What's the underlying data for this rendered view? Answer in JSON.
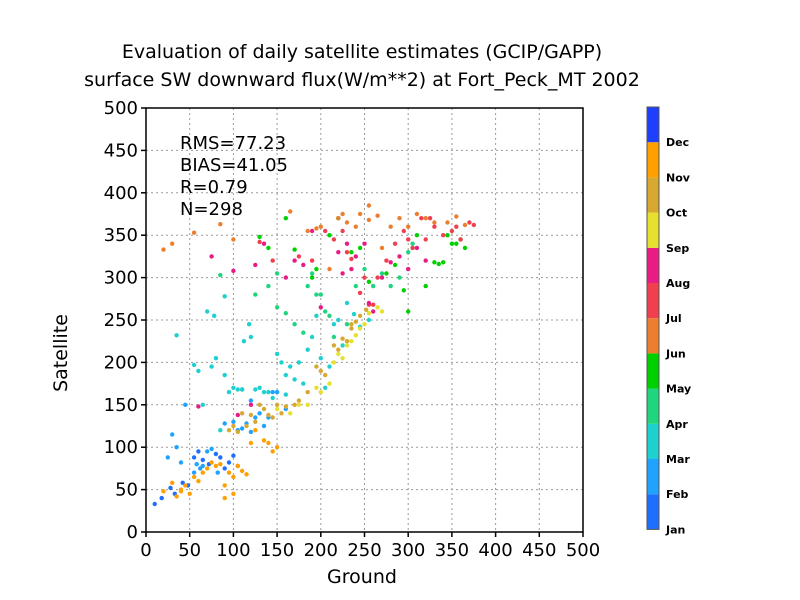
{
  "chart_data": {
    "type": "scatter",
    "title": "Evaluation of daily satellite estimates (GCIP/GAPP)",
    "subtitle": "surface SW downward flux(W/m**2) at Fort_Peck_MT 2002",
    "xlabel": "Ground",
    "ylabel": "Satellite",
    "xlim": [
      0,
      500
    ],
    "ylim": [
      0,
      500
    ],
    "xticks": [
      "0",
      "50",
      "100",
      "150",
      "200",
      "250",
      "300",
      "350",
      "400",
      "450",
      "500"
    ],
    "yticks": [
      "0",
      "50",
      "100",
      "150",
      "200",
      "250",
      "300",
      "350",
      "400",
      "450",
      "500"
    ],
    "grid": true,
    "stats": [
      "RMS=77.23",
      "BIAS=41.05",
      "R=0.79",
      "N=298"
    ],
    "colorbar": {
      "labels": [
        "Jan",
        "Feb",
        "Mar",
        "Apr",
        "May",
        "Jun",
        "Jul",
        "Aug",
        "Sep",
        "Oct",
        "Nov",
        "Dec"
      ],
      "colors": [
        "#1f6fff",
        "#1fa3ff",
        "#1fd0d0",
        "#1fd67f",
        "#00d000",
        "#ec7f2f",
        "#f04050",
        "#e81c84",
        "#e6e030",
        "#d8a830",
        "#ff9f00",
        "#1f3fff"
      ]
    },
    "series": [
      {
        "month": "Jan",
        "points": [
          [
            10,
            33
          ],
          [
            18,
            40
          ],
          [
            28,
            52
          ],
          [
            33,
            45
          ],
          [
            42,
            58
          ],
          [
            55,
            88
          ],
          [
            60,
            95
          ],
          [
            65,
            85
          ],
          [
            72,
            80
          ],
          [
            80,
            92
          ],
          [
            85,
            88
          ],
          [
            90,
            75
          ],
          [
            95,
            82
          ],
          [
            100,
            90
          ],
          [
            105,
            78
          ],
          [
            48,
            55
          ]
        ]
      },
      {
        "month": "Feb",
        "points": [
          [
            25,
            88
          ],
          [
            30,
            115
          ],
          [
            35,
            100
          ],
          [
            40,
            82
          ],
          [
            45,
            150
          ],
          [
            55,
            70
          ],
          [
            58,
            80
          ],
          [
            62,
            75
          ],
          [
            70,
            95
          ],
          [
            75,
            98
          ],
          [
            82,
            70
          ],
          [
            90,
            128
          ],
          [
            100,
            130
          ],
          [
            105,
            120
          ],
          [
            110,
            122
          ],
          [
            115,
            128
          ],
          [
            120,
            118
          ],
          [
            125,
            135
          ],
          [
            130,
            140
          ],
          [
            140,
            135
          ],
          [
            145,
            165
          ],
          [
            110,
            168
          ],
          [
            120,
            155
          ],
          [
            135,
            125
          ],
          [
            150,
            165
          ],
          [
            160,
            145
          ],
          [
            65,
            78
          ]
        ]
      },
      {
        "month": "Mar",
        "points": [
          [
            35,
            232
          ],
          [
            55,
            197
          ],
          [
            60,
            190
          ],
          [
            65,
            150
          ],
          [
            70,
            260
          ],
          [
            75,
            195
          ],
          [
            80,
            205
          ],
          [
            85,
            120
          ],
          [
            90,
            185
          ],
          [
            95,
            165
          ],
          [
            100,
            170
          ],
          [
            105,
            168
          ],
          [
            110,
            168
          ],
          [
            112,
            225
          ],
          [
            118,
            245
          ],
          [
            120,
            230
          ],
          [
            125,
            168
          ],
          [
            130,
            170
          ],
          [
            135,
            165
          ],
          [
            140,
            165
          ],
          [
            150,
            210
          ],
          [
            155,
            200
          ],
          [
            160,
            185
          ],
          [
            165,
            195
          ],
          [
            170,
            180
          ],
          [
            175,
            200
          ],
          [
            180,
            175
          ],
          [
            185,
            215
          ],
          [
            190,
            230
          ],
          [
            195,
            255
          ],
          [
            200,
            205
          ],
          [
            205,
            170
          ],
          [
            210,
            195
          ],
          [
            215,
            245
          ],
          [
            220,
            250
          ],
          [
            225,
            220
          ],
          [
            230,
            270
          ],
          [
            238,
            257
          ],
          [
            245,
            242
          ],
          [
            255,
            250
          ],
          [
            90,
            278
          ],
          [
            78,
            255
          ],
          [
            145,
            158
          ],
          [
            160,
            162
          ]
        ]
      },
      {
        "month": "Apr",
        "points": [
          [
            85,
            303
          ],
          [
            125,
            280
          ],
          [
            140,
            290
          ],
          [
            150,
            265
          ],
          [
            160,
            258
          ],
          [
            170,
            245
          ],
          [
            180,
            235
          ],
          [
            185,
            290
          ],
          [
            190,
            305
          ],
          [
            195,
            280
          ],
          [
            200,
            280
          ],
          [
            205,
            260
          ],
          [
            210,
            255
          ],
          [
            215,
            230
          ],
          [
            230,
            245
          ],
          [
            240,
            290
          ],
          [
            250,
            310
          ],
          [
            260,
            290
          ],
          [
            270,
            305
          ],
          [
            280,
            290
          ],
          [
            290,
            300
          ],
          [
            300,
            330
          ],
          [
            305,
            340
          ],
          [
            150,
            305
          ]
        ]
      },
      {
        "month": "May",
        "points": [
          [
            130,
            348
          ],
          [
            140,
            335
          ],
          [
            160,
            370
          ],
          [
            170,
            333
          ],
          [
            190,
            300
          ],
          [
            195,
            310
          ],
          [
            210,
            350
          ],
          [
            220,
            370
          ],
          [
            235,
            330
          ],
          [
            245,
            335
          ],
          [
            255,
            295
          ],
          [
            275,
            305
          ],
          [
            285,
            315
          ],
          [
            295,
            285
          ],
          [
            300,
            260
          ],
          [
            310,
            350
          ],
          [
            320,
            290
          ],
          [
            330,
            318
          ],
          [
            335,
            316
          ],
          [
            340,
            318
          ],
          [
            345,
            350
          ],
          [
            350,
            340
          ],
          [
            355,
            340
          ],
          [
            360,
            345
          ],
          [
            365,
            335
          ],
          [
            305,
            335
          ]
        ]
      },
      {
        "month": "Jun",
        "points": [
          [
            20,
            333
          ],
          [
            30,
            340
          ],
          [
            55,
            353
          ],
          [
            85,
            363
          ],
          [
            100,
            345
          ],
          [
            165,
            378
          ],
          [
            185,
            355
          ],
          [
            195,
            358
          ],
          [
            200,
            360
          ],
          [
            210,
            310
          ],
          [
            220,
            370
          ],
          [
            225,
            375
          ],
          [
            230,
            365
          ],
          [
            240,
            360
          ],
          [
            245,
            375
          ],
          [
            255,
            368
          ],
          [
            265,
            373
          ],
          [
            270,
            335
          ],
          [
            280,
            360
          ],
          [
            290,
            370
          ],
          [
            300,
            360
          ],
          [
            310,
            375
          ],
          [
            320,
            370
          ],
          [
            330,
            365
          ],
          [
            345,
            365
          ],
          [
            355,
            372
          ],
          [
            365,
            362
          ],
          [
            255,
            385
          ]
        ]
      },
      {
        "month": "Jul",
        "points": [
          [
            130,
            342
          ],
          [
            145,
            320
          ],
          [
            175,
            325
          ],
          [
            190,
            320
          ],
          [
            205,
            355
          ],
          [
            215,
            345
          ],
          [
            225,
            355
          ],
          [
            230,
            330
          ],
          [
            235,
            322
          ],
          [
            245,
            282
          ],
          [
            250,
            300
          ],
          [
            255,
            268
          ],
          [
            260,
            268
          ],
          [
            265,
            300
          ],
          [
            275,
            320
          ],
          [
            285,
            340
          ],
          [
            295,
            355
          ],
          [
            300,
            345
          ],
          [
            305,
            335
          ],
          [
            315,
            370
          ],
          [
            320,
            345
          ],
          [
            330,
            360
          ],
          [
            340,
            350
          ],
          [
            350,
            355
          ],
          [
            355,
            360
          ],
          [
            360,
            345
          ],
          [
            370,
            365
          ],
          [
            375,
            362
          ],
          [
            325,
            370
          ]
        ]
      },
      {
        "month": "Aug",
        "points": [
          [
            60,
            148
          ],
          [
            75,
            325
          ],
          [
            100,
            308
          ],
          [
            105,
            138
          ],
          [
            120,
            150
          ],
          [
            125,
            315
          ],
          [
            135,
            340
          ],
          [
            160,
            300
          ],
          [
            170,
            320
          ],
          [
            180,
            315
          ],
          [
            190,
            355
          ],
          [
            200,
            265
          ],
          [
            220,
            330
          ],
          [
            230,
            340
          ],
          [
            235,
            310
          ],
          [
            240,
            325
          ],
          [
            250,
            340
          ],
          [
            255,
            270
          ],
          [
            260,
            260
          ],
          [
            270,
            300
          ],
          [
            280,
            318
          ],
          [
            290,
            325
          ],
          [
            300,
            310
          ],
          [
            310,
            335
          ],
          [
            320,
            320
          ],
          [
            225,
            305
          ]
        ]
      },
      {
        "month": "Sep",
        "points": [
          [
            150,
            145
          ],
          [
            165,
            140
          ],
          [
            175,
            150
          ],
          [
            185,
            150
          ],
          [
            195,
            170
          ],
          [
            200,
            165
          ],
          [
            210,
            175
          ],
          [
            215,
            200
          ],
          [
            220,
            210
          ],
          [
            225,
            205
          ],
          [
            230,
            220
          ],
          [
            235,
            225
          ],
          [
            240,
            232
          ],
          [
            245,
            240
          ],
          [
            250,
            245
          ],
          [
            255,
            258
          ],
          [
            265,
            265
          ],
          [
            270,
            260
          ]
        ]
      },
      {
        "month": "Oct",
        "points": [
          [
            95,
            120
          ],
          [
            100,
            125
          ],
          [
            105,
            118
          ],
          [
            110,
            140
          ],
          [
            115,
            125
          ],
          [
            120,
            138
          ],
          [
            125,
            130
          ],
          [
            130,
            150
          ],
          [
            135,
            145
          ],
          [
            140,
            138
          ],
          [
            145,
            135
          ],
          [
            150,
            150
          ],
          [
            155,
            140
          ],
          [
            160,
            148
          ],
          [
            170,
            150
          ],
          [
            175,
            155
          ],
          [
            185,
            165
          ],
          [
            195,
            195
          ],
          [
            200,
            190
          ],
          [
            205,
            185
          ],
          [
            215,
            220
          ],
          [
            220,
            215
          ],
          [
            225,
            228
          ],
          [
            230,
            225
          ],
          [
            235,
            240
          ],
          [
            240,
            248
          ],
          [
            245,
            255
          ],
          [
            235,
            245
          ],
          [
            252,
            262
          ]
        ]
      },
      {
        "month": "Nov",
        "points": [
          [
            20,
            48
          ],
          [
            30,
            58
          ],
          [
            35,
            42
          ],
          [
            40,
            50
          ],
          [
            45,
            55
          ],
          [
            50,
            45
          ],
          [
            55,
            65
          ],
          [
            60,
            60
          ],
          [
            65,
            70
          ],
          [
            70,
            75
          ],
          [
            75,
            82
          ],
          [
            80,
            78
          ],
          [
            85,
            80
          ],
          [
            90,
            55
          ],
          [
            95,
            70
          ],
          [
            100,
            65
          ],
          [
            105,
            78
          ],
          [
            110,
            72
          ],
          [
            115,
            68
          ],
          [
            120,
            105
          ],
          [
            125,
            120
          ],
          [
            135,
            108
          ],
          [
            140,
            105
          ],
          [
            145,
            95
          ],
          [
            150,
            100
          ],
          [
            90,
            40
          ],
          [
            40,
            48
          ],
          [
            100,
            45
          ]
        ]
      },
      {
        "month": "Dec",
        "points": []
      }
    ]
  }
}
